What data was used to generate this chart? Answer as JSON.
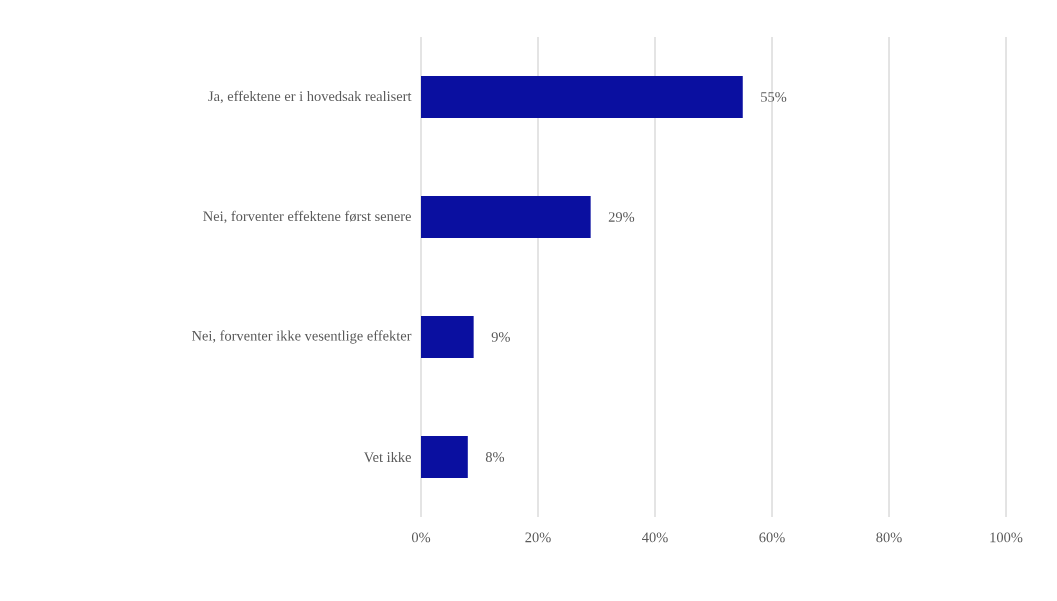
{
  "chart_data": {
    "type": "bar",
    "orientation": "horizontal",
    "categories": [
      "Ja, effektene er i hovedsak realisert",
      "Nei, forventer effektene først senere",
      "Nei, forventer ikke vesentlige effekter",
      "Vet ikke"
    ],
    "values": [
      55,
      29,
      9,
      8
    ],
    "value_labels": [
      "55%",
      "29%",
      "9%",
      "8%"
    ],
    "color": "#0a0fa0",
    "xlim": [
      0,
      100
    ],
    "xticks": [
      {
        "value": 0,
        "label": "0%"
      },
      {
        "value": 20,
        "label": "20%"
      },
      {
        "value": 40,
        "label": "40%"
      },
      {
        "value": 60,
        "label": "60%"
      },
      {
        "value": 80,
        "label": "80%"
      },
      {
        "value": 100,
        "label": "100%"
      }
    ],
    "grid": "x"
  }
}
